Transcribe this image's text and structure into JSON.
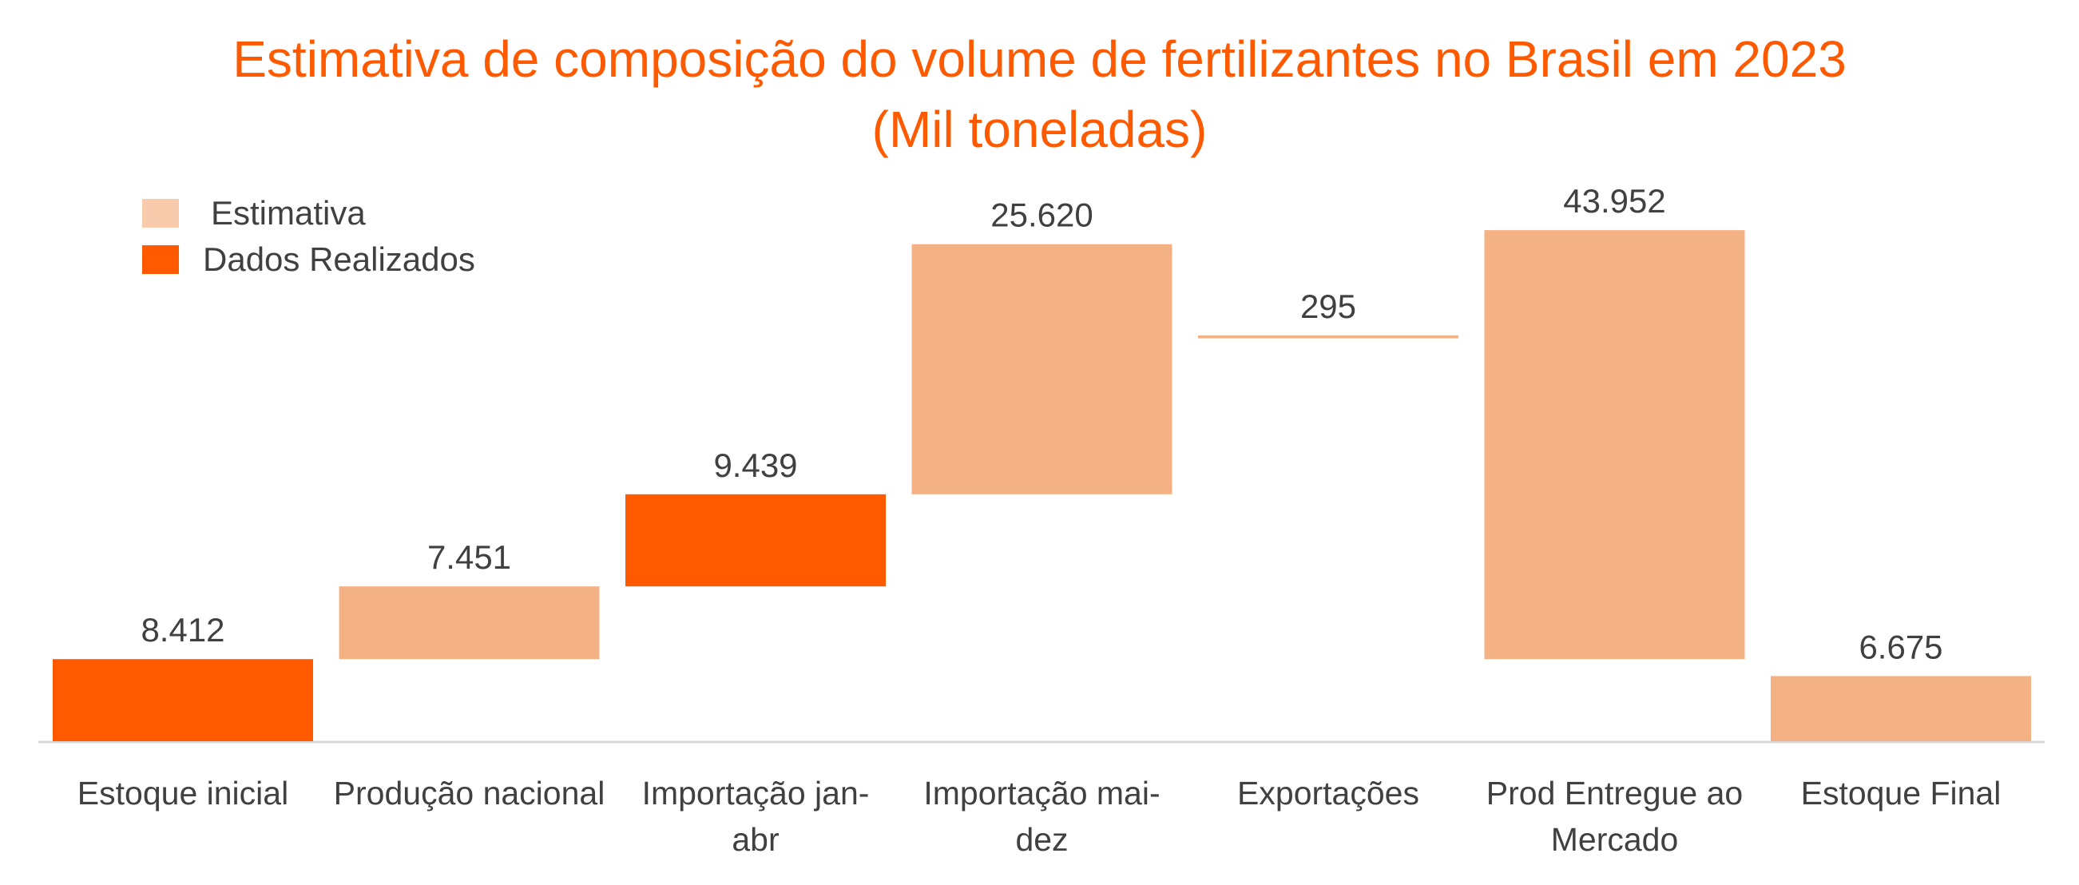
{
  "title": "Estimativa de composição do volume de fertilizantes no Brasil em 2023",
  "subtitle": "(Mil toneladas)",
  "colors": {
    "title": "#ff5a00",
    "estimativa": "#f4b183",
    "realizados": "#ff5a00",
    "legend_estimativa": "#f8cbad",
    "text": "#404040",
    "axis": "#d9d9d9"
  },
  "legend": [
    {
      "name": "Estimativa",
      "color": "#f8cbad"
    },
    {
      "name": "Dados Realizados",
      "color": "#ff5a00"
    }
  ],
  "chart_data": {
    "type": "bar",
    "variant": "waterfall",
    "title": "Estimativa de composição do volume de fertilizantes no Brasil em 2023",
    "subtitle": "(Mil toneladas)",
    "xlabel": "",
    "ylabel": "",
    "grid": false,
    "legend_position": "top-left",
    "ylim": [
      0,
      42000
    ],
    "categories": [
      [
        "Estoque inicial"
      ],
      [
        "Produção nacional"
      ],
      [
        "Importação jan-",
        "abr"
      ],
      [
        "Importação mai-",
        "dez"
      ],
      [
        "Exportações"
      ],
      [
        "Prod Entregue ao",
        "Mercado"
      ],
      [
        "Estoque Final"
      ]
    ],
    "values": [
      8412,
      7451,
      9439,
      25620,
      295,
      43952,
      6675
    ],
    "value_labels": [
      "8.412",
      "7.451",
      "9.439",
      "25.620",
      "295",
      "43.952",
      "6.675"
    ],
    "bottoms": [
      0,
      8412,
      15863,
      25302,
      41277,
      8412,
      0
    ],
    "tops": [
      8412,
      15863,
      25302,
      50922,
      41572,
      52364,
      6675
    ],
    "series_type": [
      "Dados Realizados",
      "Estimativa",
      "Dados Realizados",
      "Estimativa",
      "Estimativa",
      "Estimativa",
      "Estimativa"
    ]
  }
}
